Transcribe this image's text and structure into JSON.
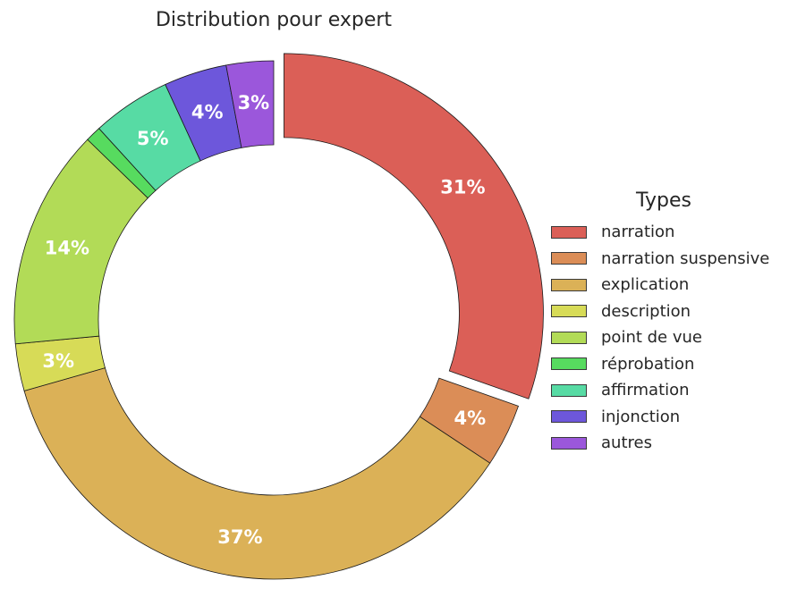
{
  "chart_data": {
    "type": "pie",
    "title": "Distribution pour expert",
    "legend_title": "Types",
    "legend_position": "right",
    "labels": [
      "narration",
      "narration suspensive",
      "explication",
      "description",
      "point de vue",
      "réprobation",
      "affirmation",
      "injonction",
      "autres"
    ],
    "values": [
      31,
      4,
      37,
      3,
      14,
      1,
      5,
      4,
      3
    ],
    "value_labels": [
      "31%",
      "4%",
      "37%",
      "3%",
      "14%",
      "",
      "5%",
      "4%",
      "3%"
    ],
    "colors": [
      "#db5f57",
      "#db8d57",
      "#dbb157",
      "#d7db57",
      "#b2db57",
      "#57db5f",
      "#57dba4",
      "#6d57db",
      "#9b57db"
    ],
    "exploded": [
      "narration"
    ]
  }
}
